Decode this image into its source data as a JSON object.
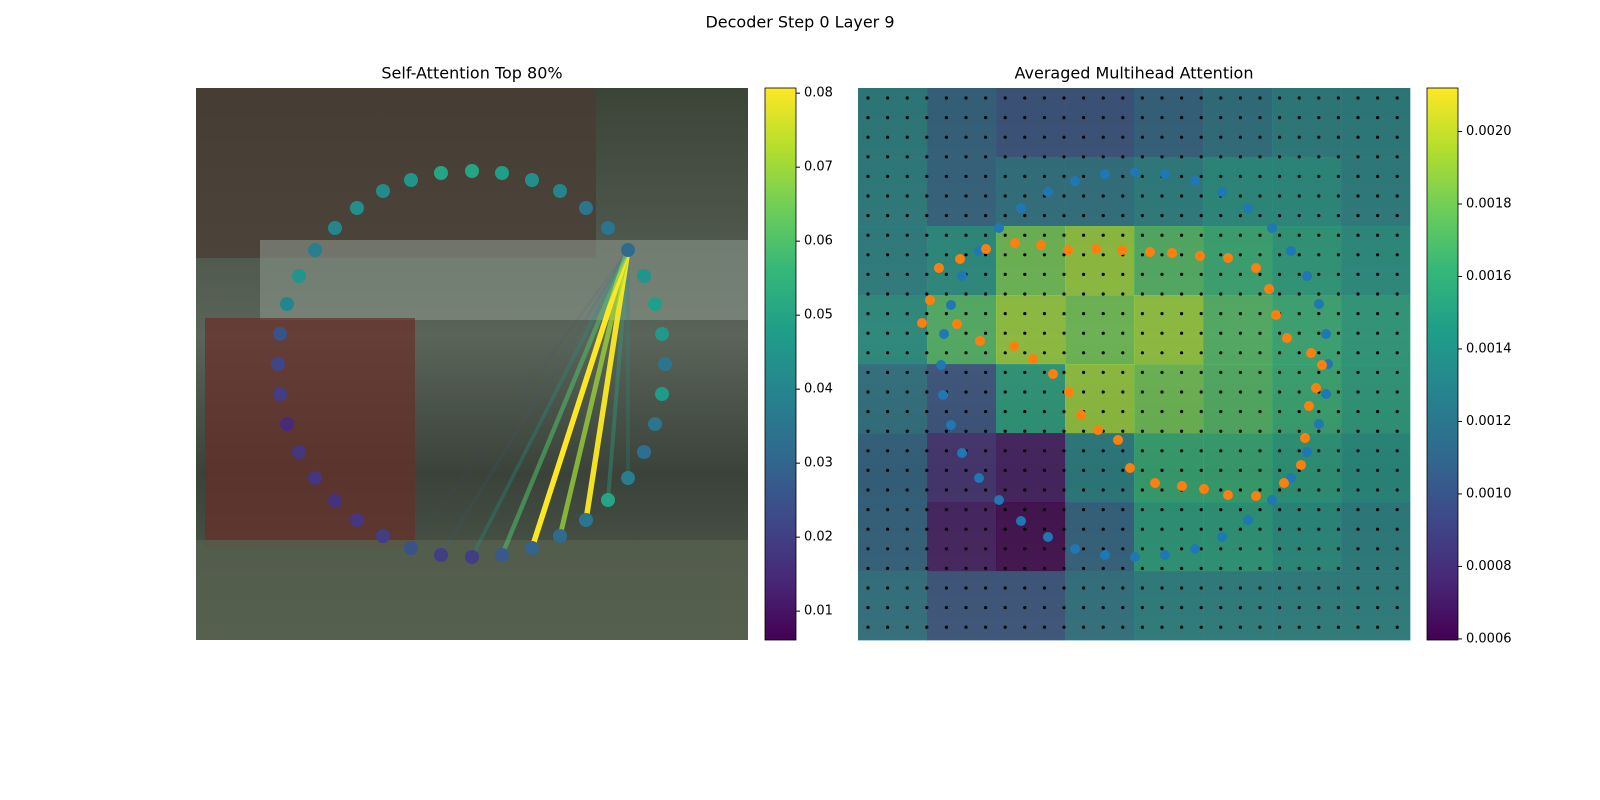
{
  "title": "Decoder Step 0 Layer 9",
  "chart_data": [
    {
      "type": "scatter",
      "title": "Self-Attention Top 80%",
      "xlim": [
        0,
        552
      ],
      "ylim": [
        0,
        552
      ],
      "x": [
        432,
        448,
        459,
        466,
        469,
        466,
        459,
        448,
        432,
        412,
        390,
        364,
        336,
        306,
        276,
        245,
        215,
        187,
        161,
        139,
        119,
        103,
        91,
        84,
        82,
        84,
        91,
        103,
        119,
        139,
        161,
        187,
        215,
        245,
        276,
        306,
        336,
        364,
        390,
        412
      ],
      "y": [
        162,
        188,
        216,
        246,
        276,
        306,
        336,
        364,
        390,
        412,
        432,
        448,
        460,
        467,
        469,
        467,
        460,
        448,
        432,
        413,
        390,
        364,
        336,
        306,
        276,
        246,
        216,
        188,
        162,
        140,
        120,
        103,
        92,
        85,
        83,
        85,
        92,
        103,
        120,
        140
      ],
      "values": [
        0.032,
        0.045,
        0.048,
        0.046,
        0.035,
        0.047,
        0.035,
        0.033,
        0.038,
        0.05,
        0.035,
        0.032,
        0.03,
        0.027,
        0.02,
        0.02,
        0.025,
        0.02,
        0.018,
        0.017,
        0.018,
        0.018,
        0.015,
        0.02,
        0.022,
        0.025,
        0.04,
        0.045,
        0.038,
        0.04,
        0.043,
        0.042,
        0.045,
        0.05,
        0.05,
        0.048,
        0.043,
        0.04,
        0.035,
        0.035
      ],
      "links": {
        "source": 0,
        "targets": [
          8,
          9,
          10,
          11,
          12,
          13,
          14,
          15,
          16
        ],
        "values": [
          0.042,
          0.05,
          0.08,
          0.07,
          0.081,
          0.06,
          0.045,
          0.03,
          0.025
        ]
      },
      "colorbar": {
        "lim": [
          0.0061,
          0.0807
        ],
        "ticks": [
          0.01,
          0.02,
          0.03,
          0.04,
          0.05,
          0.06,
          0.07,
          0.08
        ]
      }
    },
    {
      "type": "heatmap",
      "title": "Averaged Multihead Attention",
      "xlim": [
        0,
        552
      ],
      "ylim": [
        0,
        552
      ],
      "matrix": [
        [
          0.0013,
          0.0011,
          0.001,
          0.001,
          0.0011,
          0.0012,
          0.0013,
          0.0013
        ],
        [
          0.0013,
          0.0011,
          0.0012,
          0.0012,
          0.0013,
          0.0014,
          0.0014,
          0.0013
        ],
        [
          0.0013,
          0.0014,
          0.0018,
          0.0019,
          0.0017,
          0.0016,
          0.0015,
          0.0014
        ],
        [
          0.0014,
          0.0017,
          0.0019,
          0.0018,
          0.0019,
          0.0017,
          0.0016,
          0.0015
        ],
        [
          0.0012,
          0.001,
          0.0015,
          0.0019,
          0.0018,
          0.0017,
          0.0016,
          0.0015
        ],
        [
          0.0011,
          0.0008,
          0.0007,
          0.0013,
          0.0016,
          0.0016,
          0.0015,
          0.0014
        ],
        [
          0.0011,
          0.0007,
          0.0006,
          0.0011,
          0.0015,
          0.0015,
          0.0014,
          0.0013
        ],
        [
          0.0012,
          0.001,
          0.001,
          0.0012,
          0.0013,
          0.0013,
          0.0013,
          0.0013
        ]
      ],
      "points": [
        {
          "color": "#1f77b4",
          "x": [
            190,
            217,
            247,
            277,
            307,
            337,
            364,
            390,
            414,
            433,
            449,
            461,
            468,
            470,
            468,
            461,
            449,
            433,
            414,
            390,
            364,
            337,
            307,
            277,
            247,
            217,
            190,
            163,
            141,
            121,
            104,
            93,
            85,
            83,
            86,
            93,
            104,
            121,
            141,
            163
          ],
          "y": [
            104,
            93,
            86,
            84,
            86,
            93,
            104,
            120,
            140,
            163,
            188,
            216,
            246,
            276,
            306,
            336,
            364,
            390,
            412,
            432,
            449,
            461,
            467,
            469,
            467,
            461,
            449,
            433,
            412,
            390,
            365,
            337,
            307,
            277,
            246,
            217,
            188,
            163,
            140,
            120
          ]
        },
        {
          "color": "#ff7f0e",
          "x": [
            64,
            72,
            81,
            102,
            128,
            157,
            183,
            210,
            238,
            264,
            292,
            314,
            342,
            370,
            398,
            411,
            418,
            429,
            453,
            464,
            458,
            451,
            447,
            443,
            426,
            398,
            370,
            346,
            324,
            297,
            272,
            260,
            240,
            223,
            211,
            195,
            175,
            156,
            122,
            99
          ],
          "y": [
            235,
            212,
            180,
            171,
            161,
            155,
            157,
            162,
            161,
            162,
            164,
            165,
            168,
            170,
            180,
            201,
            227,
            250,
            265,
            277,
            300,
            318,
            350,
            377,
            395,
            408,
            407,
            401,
            398,
            395,
            380,
            352,
            342,
            327,
            304,
            286,
            271,
            258,
            253,
            236
          ]
        }
      ],
      "colorbar": {
        "lim": [
          0.000597,
          0.00212
        ],
        "ticks": [
          {
            "value": 0.0006,
            "label": "0.0006"
          },
          {
            "value": 0.0008,
            "label": "0.0008"
          },
          {
            "value": 0.001,
            "label": "0.0010"
          },
          {
            "value": 0.0012,
            "label": "0.0012"
          },
          {
            "value": 0.0014,
            "label": "0.0014"
          },
          {
            "value": 0.0016,
            "label": "0.0016"
          },
          {
            "value": 0.0018,
            "label": "0.0018"
          },
          {
            "value": 0.002,
            "label": "0.0020"
          }
        ]
      }
    }
  ]
}
